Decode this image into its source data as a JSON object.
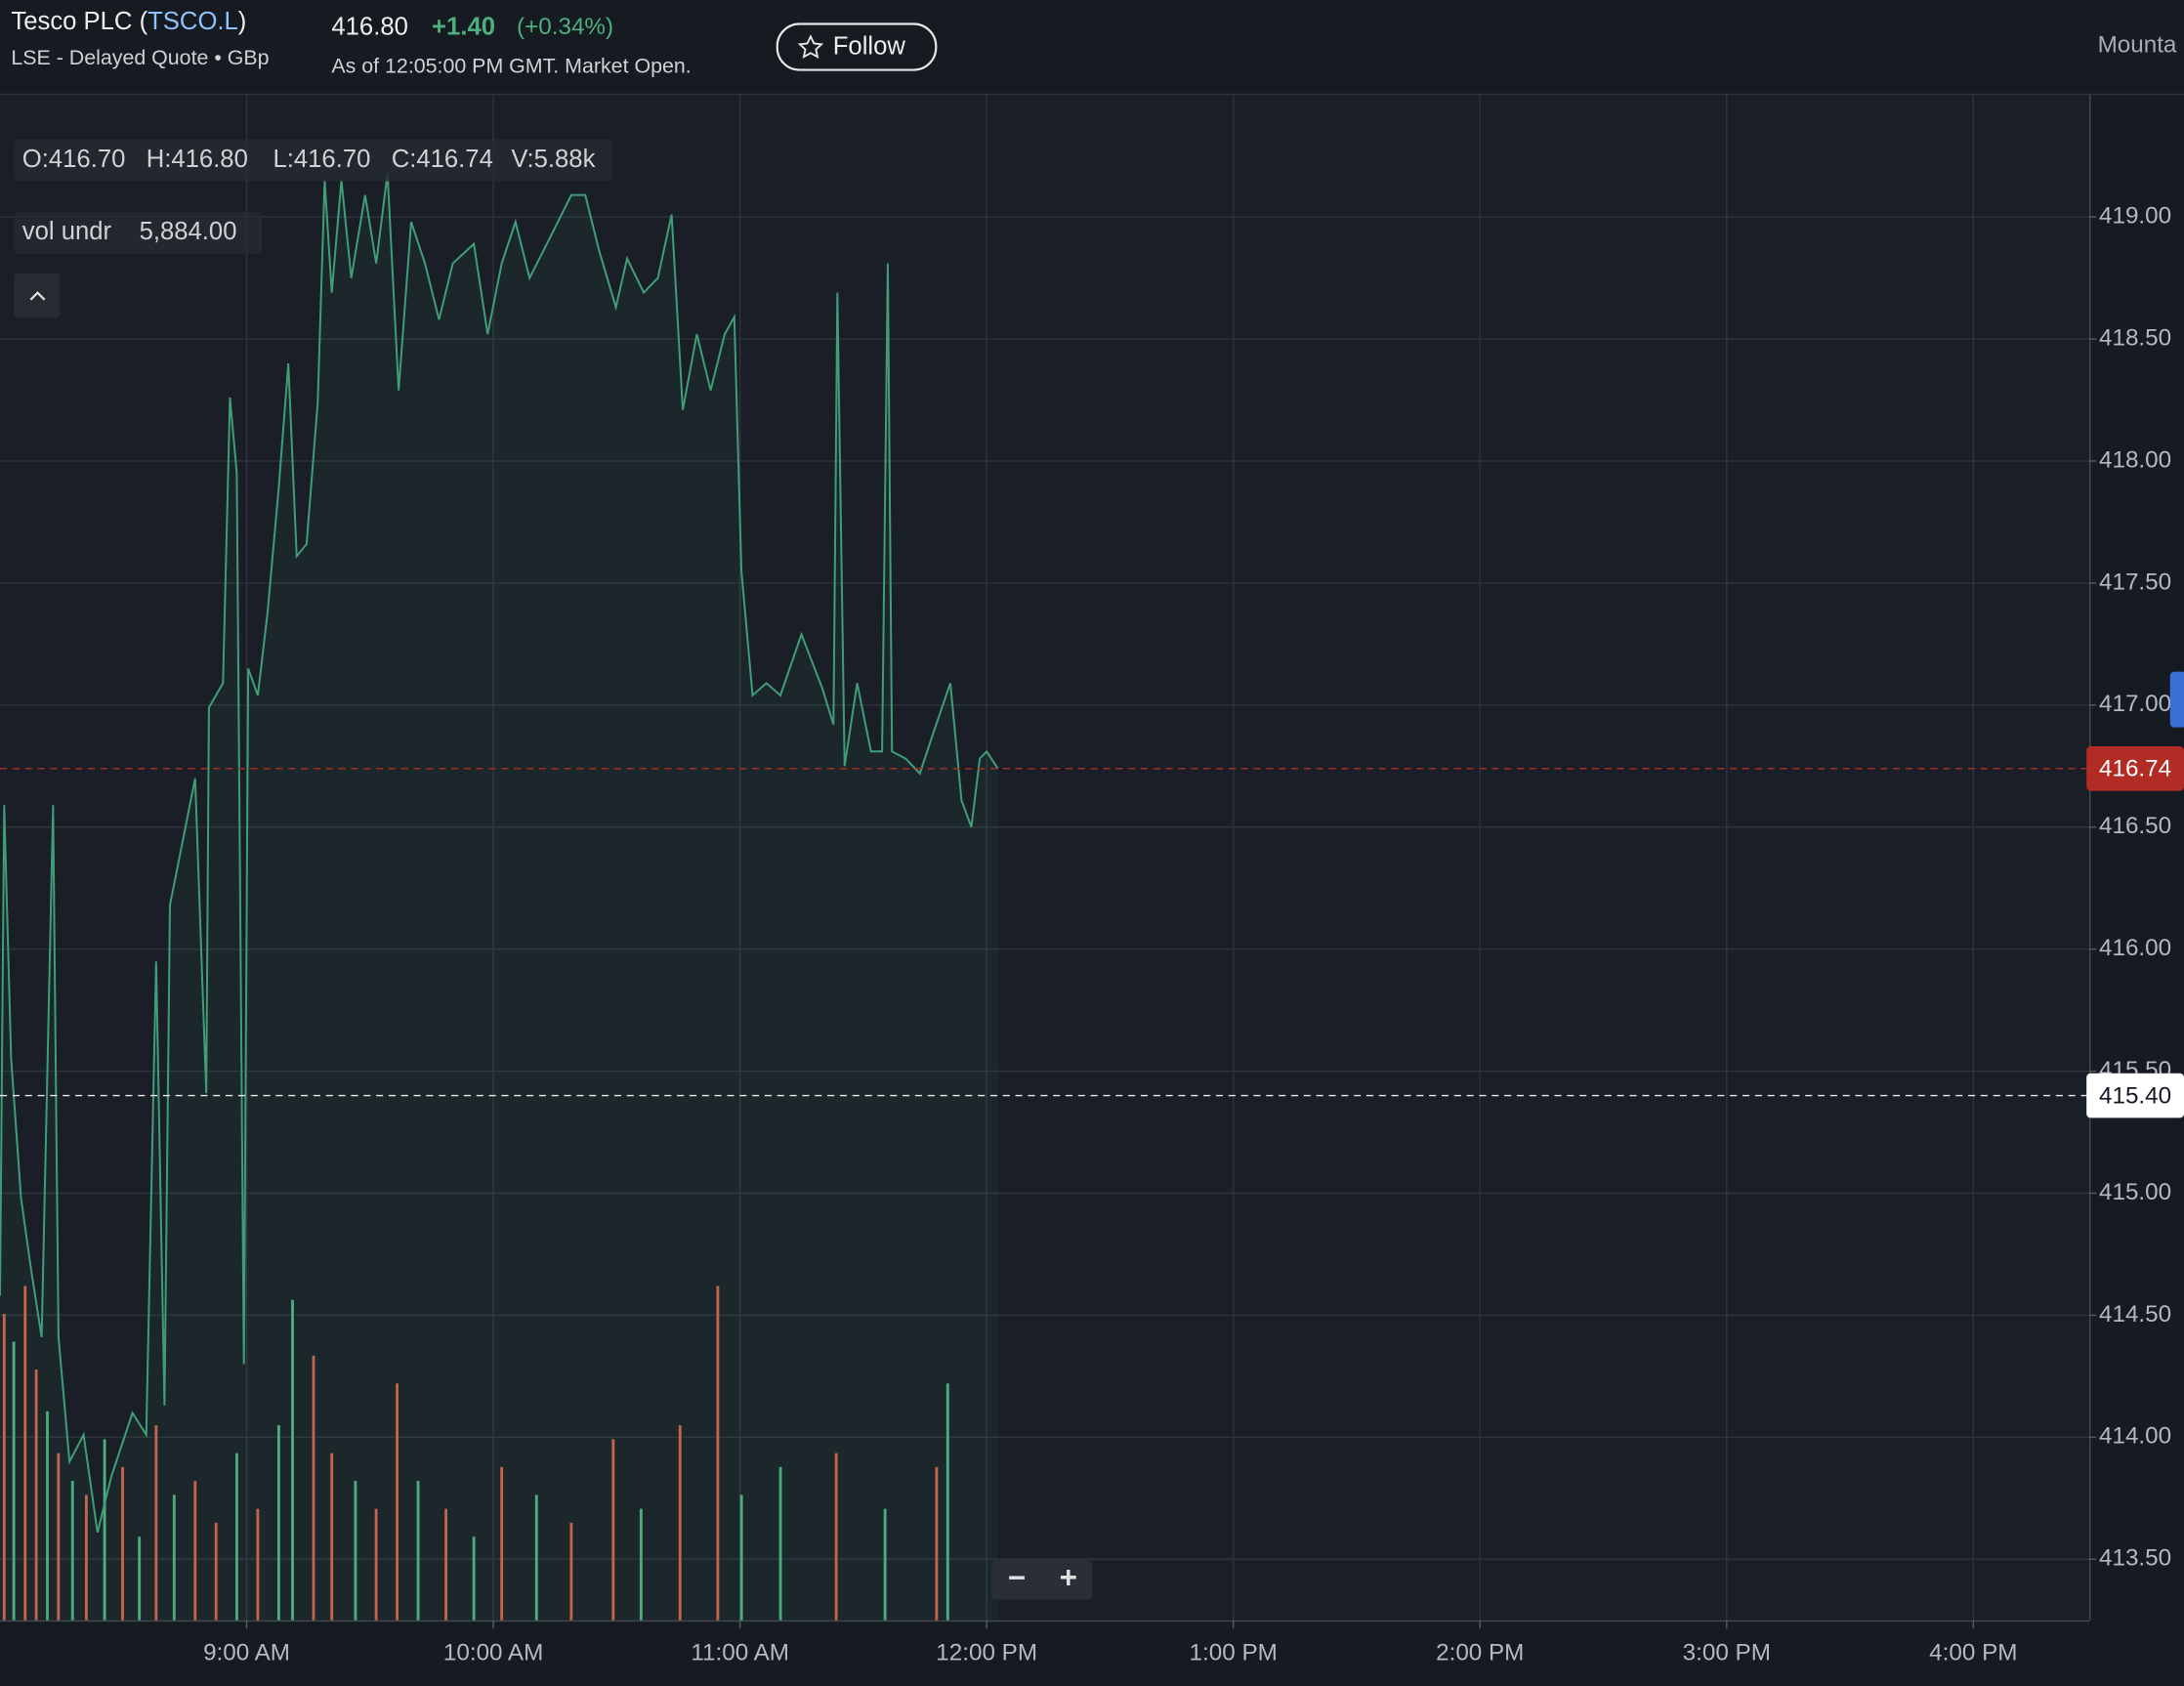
{
  "header": {
    "title_parts": [
      "Tesco PLC (",
      "TSCO.L",
      ")"
    ],
    "exchange": "LSE - Delayed Quote • GBp",
    "price": "416.80",
    "change": "+1.40",
    "change_pct": "(+0.34%)",
    "as_of": "As of 12:05:00 PM GMT. Market Open.",
    "follow": "Follow",
    "region": "Mounta"
  },
  "legend": {
    "ohlc": [
      "O:416.70",
      "H:416.80",
      "L:416.70",
      "C:416.74",
      "V:5.88k"
    ],
    "indicator": "vol undr",
    "indicator_value": "5,884.00"
  },
  "ui": {
    "zoom": [
      "−",
      "+"
    ]
  },
  "chart_data": {
    "type": "line",
    "xlim": [
      8,
      16.47
    ],
    "ylim": [
      413.25,
      419.5
    ],
    "xticks": [
      {
        "value": 9,
        "label": "9:00 AM"
      },
      {
        "value": 10,
        "label": "10:00 AM"
      },
      {
        "value": 11,
        "label": "11:00 AM"
      },
      {
        "value": 12,
        "label": "12:00 PM"
      },
      {
        "value": 13,
        "label": "1:00 PM"
      },
      {
        "value": 14,
        "label": "2:00 PM"
      },
      {
        "value": 15,
        "label": "3:00 PM"
      },
      {
        "value": 16,
        "label": "4:00 PM"
      }
    ],
    "yticks": [
      {
        "value": 413.5,
        "label": "413.50"
      },
      {
        "value": 414,
        "label": "414.00"
      },
      {
        "value": 414.5,
        "label": "414.50"
      },
      {
        "value": 415,
        "label": "415.00"
      },
      {
        "value": 415.5,
        "label": "415.50"
      },
      {
        "value": 416,
        "label": "416.00"
      },
      {
        "value": 416.5,
        "label": "416.50"
      },
      {
        "value": 417,
        "label": "417.00"
      },
      {
        "value": 417.5,
        "label": "417.50"
      },
      {
        "value": 418,
        "label": "418.00"
      },
      {
        "value": 418.5,
        "label": "418.50"
      },
      {
        "value": 419,
        "label": "419.00"
      }
    ],
    "grid": true,
    "series": [
      {
        "color": "#3f9e78",
        "x": [
          8.0,
          8.017,
          8.045,
          8.085,
          8.124,
          8.169,
          8.215,
          8.237,
          8.282,
          8.339,
          8.395,
          8.452,
          8.537,
          8.593,
          8.633,
          8.667,
          8.689,
          8.734,
          8.791,
          8.836,
          8.847,
          8.904,
          8.932,
          8.96,
          8.989,
          9.006,
          9.045,
          9.085,
          9.13,
          9.169,
          9.203,
          9.243,
          9.288,
          9.316,
          9.345,
          9.384,
          9.424,
          9.48,
          9.525,
          9.571,
          9.616,
          9.667,
          9.723,
          9.78,
          9.836,
          9.921,
          9.977,
          10.034,
          10.09,
          10.147,
          10.232,
          10.316,
          10.373,
          10.429,
          10.497,
          10.542,
          10.61,
          10.667,
          10.723,
          10.768,
          10.825,
          10.881,
          10.938,
          10.977,
          11.006,
          11.051,
          11.107,
          11.164,
          11.249,
          11.333,
          11.379,
          11.395,
          11.424,
          11.475,
          11.531,
          11.576,
          11.599,
          11.616,
          11.672,
          11.729,
          11.785,
          11.853,
          11.898,
          11.938,
          11.972,
          12.0,
          12.045
        ],
        "values": [
          414.58,
          416.59,
          415.55,
          414.98,
          414.7,
          414.41,
          416.59,
          414.41,
          413.9,
          414.01,
          413.61,
          413.84,
          414.1,
          414.01,
          415.95,
          414.13,
          416.18,
          416.41,
          416.7,
          415.41,
          416.99,
          417.09,
          418.26,
          417.95,
          414.3,
          417.15,
          417.04,
          417.38,
          417.89,
          418.4,
          417.61,
          417.66,
          418.24,
          419.15,
          418.69,
          419.15,
          418.75,
          419.09,
          418.81,
          419.18,
          418.29,
          418.98,
          418.81,
          418.58,
          418.81,
          418.89,
          418.52,
          418.81,
          418.98,
          418.75,
          418.92,
          419.09,
          419.09,
          418.86,
          418.63,
          418.83,
          418.69,
          418.75,
          419.01,
          418.21,
          418.52,
          418.29,
          418.52,
          418.59,
          417.55,
          417.04,
          417.09,
          417.04,
          417.29,
          417.07,
          416.92,
          418.69,
          416.75,
          417.09,
          416.81,
          416.81,
          418.81,
          416.81,
          416.78,
          416.72,
          416.89,
          417.09,
          416.61,
          416.5,
          416.78,
          416.81,
          416.74
        ]
      }
    ],
    "volume": {
      "x": [
        8.017,
        8.056,
        8.102,
        8.147,
        8.192,
        8.237,
        8.294,
        8.35,
        8.424,
        8.497,
        8.565,
        8.633,
        8.706,
        8.791,
        8.876,
        8.96,
        9.045,
        9.13,
        9.186,
        9.271,
        9.345,
        9.441,
        9.525,
        9.61,
        9.695,
        9.808,
        9.921,
        10.034,
        10.175,
        10.316,
        10.486,
        10.599,
        10.757,
        10.91,
        11.006,
        11.164,
        11.39,
        11.588,
        11.797,
        11.842
      ],
      "values": [
        220,
        200,
        240,
        180,
        150,
        120,
        100,
        90,
        130,
        110,
        60,
        140,
        90,
        100,
        70,
        120,
        80,
        140,
        230,
        190,
        120,
        100,
        80,
        170,
        100,
        80,
        60,
        110,
        90,
        70,
        130,
        80,
        140,
        240,
        90,
        110,
        120,
        80,
        110,
        170
      ],
      "colors": [
        "#d0604c",
        "#4caf7d",
        "#d0604c",
        "#d0604c",
        "#4caf7d",
        "#d0604c",
        "#4caf7d",
        "#d0604c",
        "#4caf7d",
        "#d0604c",
        "#4caf7d",
        "#d0604c",
        "#4caf7d",
        "#d0604c",
        "#d0604c",
        "#4caf7d",
        "#d0604c",
        "#4caf7d",
        "#4caf7d",
        "#d0604c",
        "#d0604c",
        "#4caf7d",
        "#d0604c",
        "#d0604c",
        "#4caf7d",
        "#d0604c",
        "#4caf7d",
        "#d0604c",
        "#4caf7d",
        "#d0604c",
        "#d0604c",
        "#4caf7d",
        "#d0604c",
        "#d0604c",
        "#4caf7d",
        "#4caf7d",
        "#d0604c",
        "#4caf7d",
        "#d0604c",
        "#4caf7d"
      ]
    },
    "last_price": {
      "value": 416.74,
      "color": "#b22c26"
    },
    "prev_close": {
      "value": 415.4,
      "label": "415.40"
    }
  }
}
